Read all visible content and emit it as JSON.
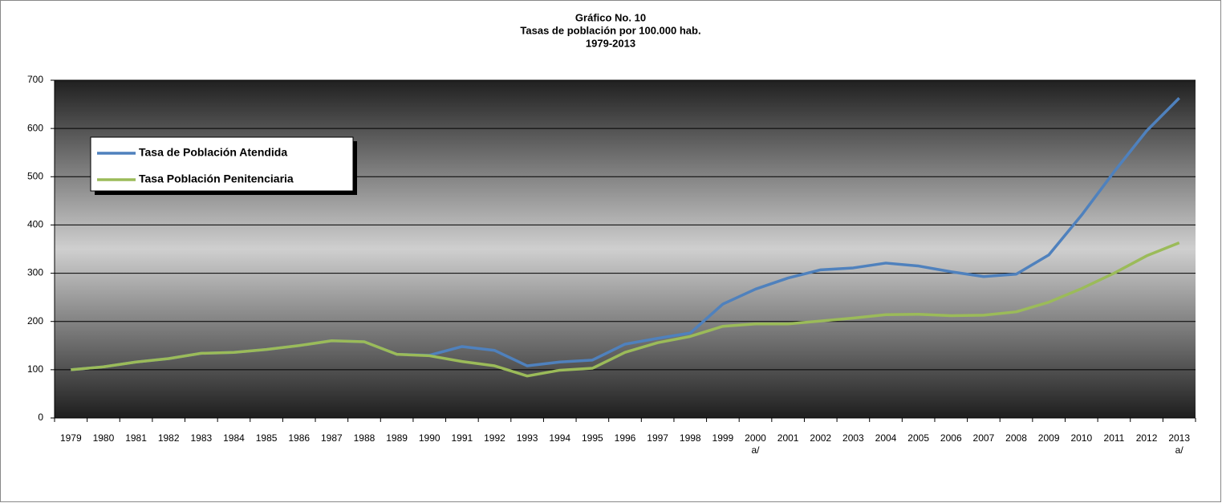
{
  "chart_data": {
    "type": "line",
    "title": "Gráfico No. 10",
    "subtitle": "Tasas de población por 100.000 hab.",
    "period": "1979-2013",
    "categories": [
      "1979",
      "1980",
      "1981",
      "1982",
      "1983",
      "1984",
      "1985",
      "1986",
      "1987",
      "1988",
      "1989",
      "1990",
      "1991",
      "1992",
      "1993",
      "1994",
      "1995",
      "1996",
      "1997",
      "1998",
      "1999",
      "2000 a/",
      "2001",
      "2002",
      "2003",
      "2004",
      "2005",
      "2006",
      "2007",
      "2008",
      "2009",
      "2010",
      "2011",
      "2012",
      "2013 a/"
    ],
    "series": [
      {
        "name": "Tasa de Población Atendida",
        "color": "#4f81bd",
        "values": [
          100,
          106,
          116,
          123,
          134,
          136,
          142,
          150,
          160,
          158,
          132,
          130,
          148,
          140,
          108,
          116,
          120,
          153,
          165,
          176,
          236,
          267,
          290,
          307,
          311,
          321,
          315,
          303,
          293,
          298,
          338,
          420,
          510,
          595,
          663
        ]
      },
      {
        "name": "Tasa Población Penitenciaria",
        "color": "#9bbb59",
        "values": [
          100,
          106,
          116,
          123,
          134,
          136,
          142,
          150,
          160,
          158,
          132,
          129,
          117,
          108,
          87,
          99,
          103,
          136,
          156,
          169,
          190,
          195,
          195,
          201,
          207,
          214,
          215,
          212,
          213,
          220,
          240,
          268,
          300,
          336,
          363
        ]
      }
    ],
    "ylim": [
      0,
      700
    ],
    "yticks": [
      0,
      100,
      200,
      300,
      400,
      500,
      600,
      700
    ],
    "grid": true,
    "legend": "upper left"
  }
}
